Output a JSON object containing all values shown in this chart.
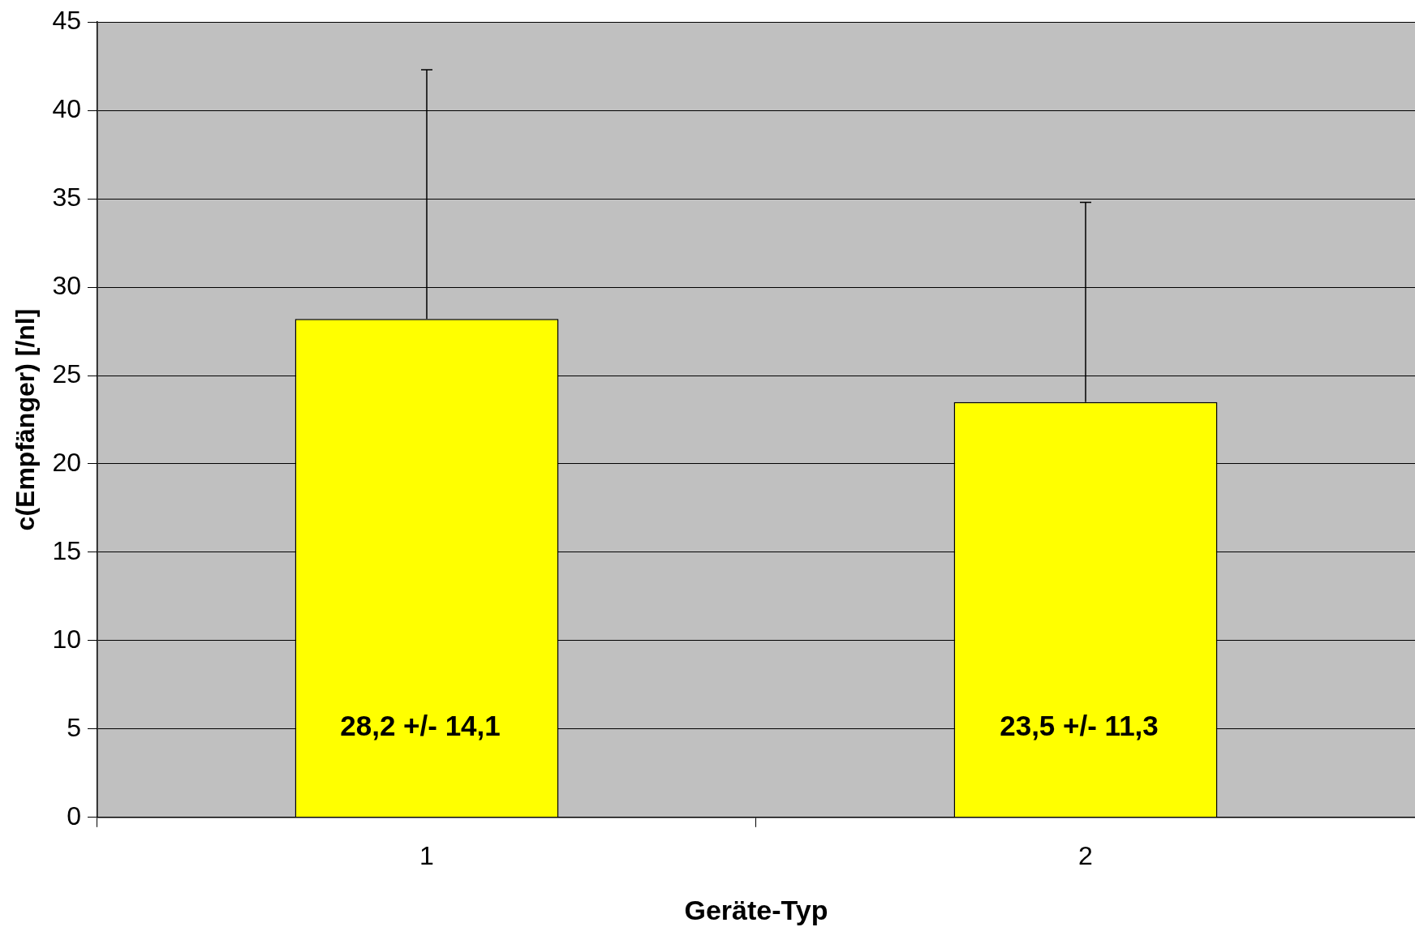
{
  "chart_data": {
    "type": "bar",
    "xlabel": "Geräte-Typ",
    "ylabel": "c(Empfänger) [/nl]",
    "categories": [
      "1",
      "2"
    ],
    "values": [
      28.2,
      23.5
    ],
    "color": "#ffff00",
    "errors": [
      [
        28.2,
        42.3
      ],
      [
        23.5,
        34.8
      ]
    ],
    "value_labels": [
      "28,2 +/- 14,1",
      "23,5 +/- 11,3"
    ],
    "ylim": [
      0,
      45
    ],
    "yticks": [
      0,
      5,
      10,
      15,
      20,
      25,
      30,
      35,
      40,
      45
    ],
    "grid": "y",
    "legend": false
  }
}
